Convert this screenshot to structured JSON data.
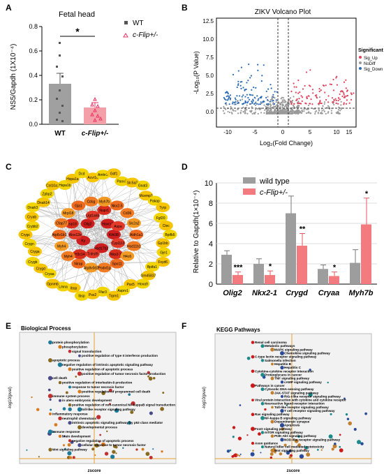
{
  "panel_labels": {
    "a": "A",
    "b": "B",
    "c": "C",
    "d": "D",
    "e": "E",
    "f": "F"
  },
  "panel_a": {
    "title": "Fetal head",
    "ylabel": "NS5/Gapdh (1X10⁻⁴)",
    "significance": "*",
    "legend": [
      "WT",
      "c-Flip+/-"
    ]
  },
  "panel_b": {
    "title": "ZIKV Volcano Plot",
    "xlabel": "Log₂(Fold Change)",
    "ylabel": "-Log₁₀(P Value)",
    "legend_title": "Significant",
    "legend": [
      "Sig_Up",
      "NoDiff",
      "Sig_Down"
    ]
  },
  "panel_c": {
    "genes": [
      "Kihl38",
      "Cyp2j13",
      "Nkx2-1",
      "Hsd17b2",
      "Tnfrsf9",
      "H3c14",
      "Ky",
      "Alox12e",
      "Usp18",
      "Olig2",
      "Ugt1a6b",
      "Nupr1",
      "Havcr2",
      "Aspa",
      "Aldh1a1",
      "Hsd11b1",
      "H4c6",
      "Spo11",
      "Podxl1p",
      "Atp8v0d2",
      "Nirap",
      "Myh4",
      "Myh4",
      "Atp6v1b1",
      "Cfap77",
      "Mrpl18",
      "Gja1",
      "Cdsg",
      "Myh7b",
      "Nkx2-5",
      "Cd36",
      "Slc2a2",
      "Bpifb5",
      "Gp1bb",
      "Gje1",
      "Fxyd6",
      "Bpifa1",
      "Gm45837",
      "Hoxa9",
      "Pax5",
      "Asprv1",
      "Trpm1",
      "Ffar3",
      "Psx2",
      "Ibsp",
      "Ibsp",
      "Lmna",
      "Gpnmb",
      "Cryaa",
      "Crygd",
      "Crygb",
      "Cryga",
      "Crygn",
      "Crygc",
      "Crybb2",
      "Cryab",
      "Dnah3",
      "Dnah14",
      "Zpbp2",
      "Col10a1",
      "Hspa1b",
      "Hspa1a",
      "Dcd",
      "Acvr1c",
      "Amhr2",
      "Gdf1",
      "Panx3",
      "Slc5a2",
      "Gnat3",
      "Mcemp1",
      "Pakap",
      "Tyrp",
      "Fgf20",
      "Clec"
    ]
  },
  "panel_d": {
    "ylabel": "Relative to Gapdh(1×10⁻⁴)",
    "legend": [
      "wild type",
      "c-Flip+/-"
    ],
    "chart_data": {
      "type": "bar",
      "categories": [
        "Olig2",
        "Nkx2-1",
        "Crygd",
        "Cryaa",
        "Myh7b"
      ],
      "series": [
        {
          "name": "wild type",
          "values": [
            2.9,
            2.0,
            7.0,
            1.5,
            2.1
          ],
          "errors": [
            0.4,
            0.5,
            1.7,
            0.4,
            1.3
          ]
        },
        {
          "name": "c-Flip+/-",
          "values": [
            0.9,
            0.9,
            3.8,
            0.8,
            5.9
          ],
          "errors": [
            0.3,
            0.4,
            1.2,
            0.4,
            2.6
          ]
        }
      ],
      "significance": [
        "***",
        "*",
        "**",
        "*",
        "*"
      ],
      "ylim": [
        0,
        10
      ],
      "yticks": [
        0,
        2,
        4,
        6,
        8,
        10
      ]
    }
  },
  "panel_e": {
    "title": "Biological Process",
    "xlabel": "zscore",
    "ylabel": "-log10(pval)",
    "terms": [
      "protein phosphorylation",
      "phosphorylation",
      "signal transduction",
      "positive regulation of type II interferon production",
      "apoptotic process",
      "negative regulation of intrinsic apoptotic signaling pathway",
      "positive regulation of apoptotic process",
      "positive regulation of tumor necrosis factor production",
      "cell death",
      "positive regulation of interleukin-8 production",
      "response to tumor necrosis factor",
      "positive regulation of programmed cell death",
      "immune system process",
      "in utero embryonic development",
      "positive regulation of non-canonical NF-kappaB signal transduction",
      "toll-like receptor signaling pathway",
      "inflammatory response",
      "neutrophil chemotaxis",
      "intrinsic apoptotic signaling pathway by p53 class mediator",
      "developmental process",
      "immune response",
      "brain development",
      "negative regulation of apoptotic process",
      "cellular response to tumor necrosis factor",
      "Wnt signaling pathway"
    ]
  },
  "panel_f": {
    "title": "KEGG Pathways",
    "xlabel": "zscore",
    "ylabel": "-log10(pval)",
    "terms": [
      "Renal cell carcinoma",
      "Metabolic pathways",
      "MAPK signaling pathway",
      "Chemokine signaling pathway",
      "C-type lectin receptor signaling pathway",
      "Salmonella infection",
      "Hepatitis B",
      "Hepatitis C",
      "Cytokine-cytokine receptor interaction",
      "Proteoglycans in cancer",
      "TNF signaling pathway",
      "cAMP signaling pathway",
      "Pathways in cancer",
      "Cytosolic DNA-sensing pathway",
      "JAK-STAT signaling pathway",
      "RIG-I-like receptor signaling pathway",
      "Viral protein interaction with cytokine and cytokine receptor",
      "Neuroactive ligand-receptor interaction",
      "Toll-like receptor signaling pathway",
      "T cell receptor signaling pathway",
      "Ras signaling pathway",
      "NF-kappa B signaling pathway",
      "Dopaminergic synapse",
      "Apoptosis",
      "FoxO signaling pathway",
      "mTOR signaling pathway",
      "PI3K-Akt signaling pathway",
      "NOD-like receptor signaling pathway",
      "Axon guidance",
      "Natural killer cell mediated cytotoxicity",
      "Wnt signaling pathway"
    ]
  }
}
